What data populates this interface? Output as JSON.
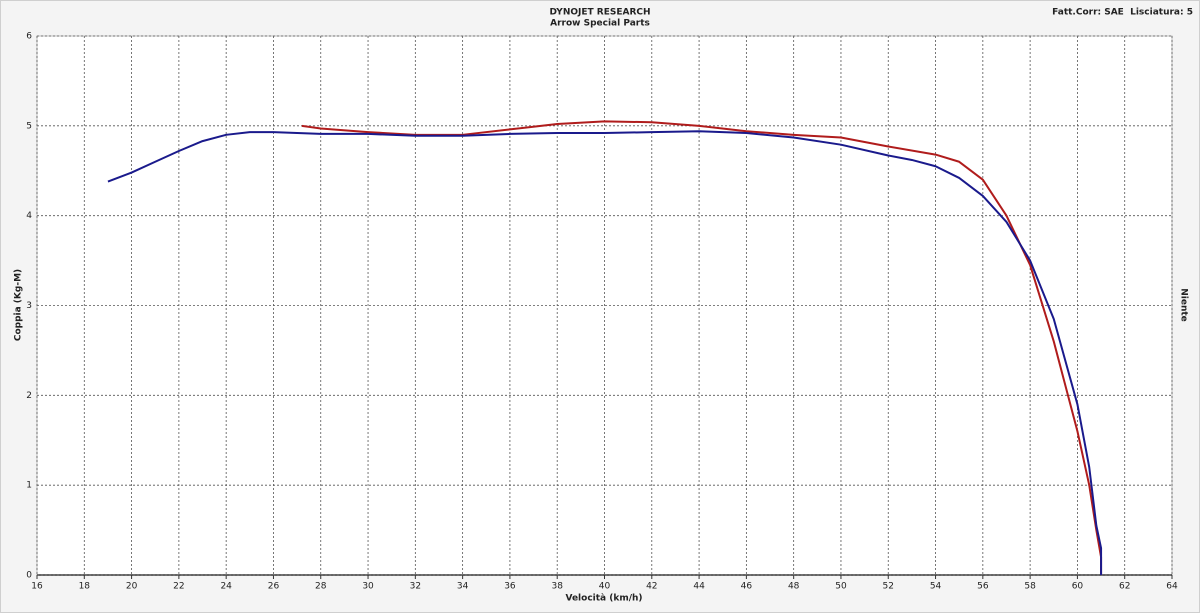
{
  "chart_data": {
    "type": "line",
    "title": "DYNOJET RESEARCH",
    "subtitle": "Arrow Special Parts",
    "corner_note": "Fatt.Corr: SAE  Lisciatura: 5",
    "right_label": "Niente",
    "x_label": "Velocità (km/h)",
    "y_label": "Coppia (Kg-M)",
    "xlim": [
      16,
      64
    ],
    "xticks": [
      16,
      18,
      20,
      22,
      24,
      26,
      28,
      30,
      32,
      34,
      36,
      38,
      40,
      42,
      44,
      46,
      48,
      50,
      52,
      54,
      56,
      58,
      60,
      62,
      64
    ],
    "ylim": [
      0,
      6
    ],
    "yticks": [
      0,
      1,
      2,
      3,
      4,
      5,
      6
    ],
    "grid": true,
    "series": [
      {
        "color": "#b01c1c",
        "x": [
          27.2,
          28,
          30,
          32,
          34,
          36,
          38,
          40,
          42,
          44,
          46,
          48,
          50,
          52,
          54,
          55,
          56,
          57,
          58,
          59,
          60,
          60.5,
          60.8,
          61,
          61
        ],
        "values": [
          5.0,
          4.97,
          4.93,
          4.9,
          4.9,
          4.96,
          5.02,
          5.05,
          5.04,
          5.0,
          4.94,
          4.9,
          4.87,
          4.77,
          4.68,
          4.6,
          4.4,
          4.0,
          3.45,
          2.6,
          1.6,
          1.0,
          0.5,
          0.2,
          0
        ]
      },
      {
        "color": "#1a1a8c",
        "x": [
          19,
          20,
          21,
          22,
          23,
          24,
          25,
          26,
          27,
          28,
          30,
          32,
          34,
          36,
          38,
          40,
          42,
          44,
          46,
          48,
          50,
          52,
          53,
          54,
          55,
          56,
          57,
          58,
          59,
          60,
          60.5,
          60.8,
          61,
          61
        ],
        "values": [
          4.38,
          4.48,
          4.6,
          4.72,
          4.83,
          4.9,
          4.93,
          4.93,
          4.92,
          4.91,
          4.91,
          4.89,
          4.89,
          4.91,
          4.92,
          4.92,
          4.93,
          4.94,
          4.92,
          4.87,
          4.79,
          4.67,
          4.62,
          4.55,
          4.42,
          4.22,
          3.93,
          3.5,
          2.85,
          1.9,
          1.2,
          0.55,
          0.3,
          0
        ]
      }
    ]
  }
}
